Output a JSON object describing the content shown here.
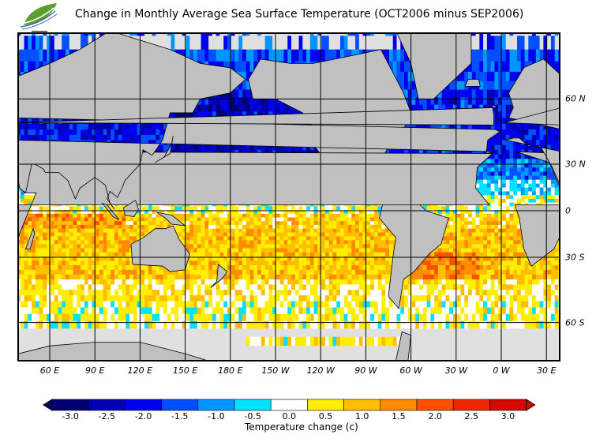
{
  "title": "Change in Monthly Average Sea Surface Temperature (OCT2006 minus SEP2006)",
  "logo": {
    "name": "leaf-logo",
    "colors": [
      "#5aa02c",
      "#2a5fb0"
    ]
  },
  "map": {
    "projection": "mercator",
    "land_color": "#c0c0c0",
    "ice_color": "#e0e0e0",
    "lon_labels": [
      "60 E",
      "90 E",
      "120 E",
      "150 E",
      "180 E",
      "150 W",
      "120 W",
      "90 W",
      "60 W",
      "30 W",
      "0 W",
      "30 E"
    ],
    "lat_labels": [
      "60 N",
      "30 N",
      "0",
      "30 S",
      "60 S"
    ]
  },
  "colorbar": {
    "label": "Temperature change  (c)",
    "ticks": [
      "-3.0",
      "-2.5",
      "-2.0",
      "-1.5",
      "-1.0",
      "-0.5",
      "0.0",
      "0.5",
      "1.0",
      "1.5",
      "2.0",
      "2.5",
      "3.0"
    ],
    "colors": [
      "#00006e",
      "#0000b0",
      "#0000f0",
      "#0050ff",
      "#0096ff",
      "#00e0ff",
      "#ffffff",
      "#ffee00",
      "#ffbe00",
      "#ff8c00",
      "#ff5000",
      "#ee2800",
      "#d20a00"
    ],
    "under_color": "#00006e",
    "over_color": "#d20a00"
  }
}
